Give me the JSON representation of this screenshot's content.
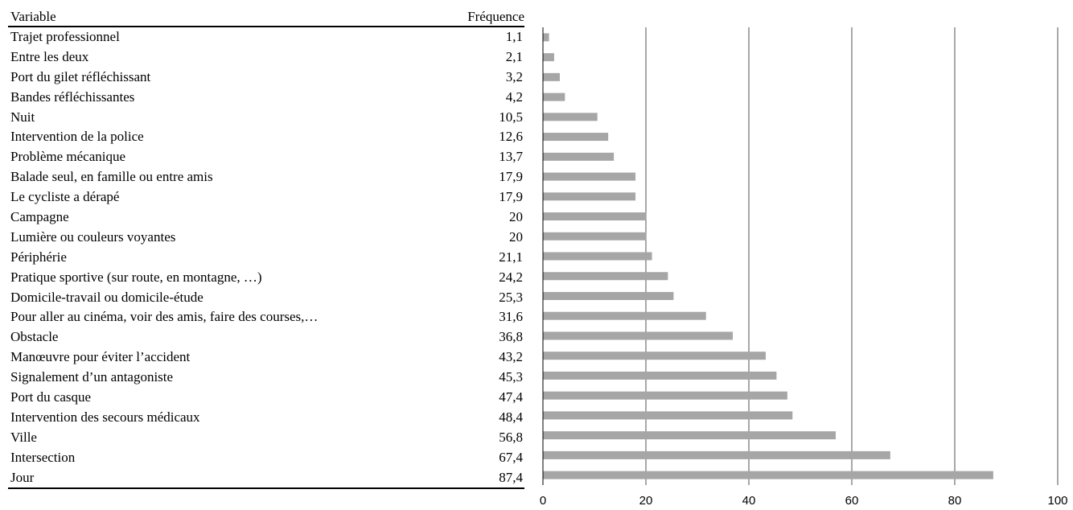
{
  "table": {
    "header_variable": "Variable",
    "header_frequency": "Fréquence",
    "rows": [
      {
        "label": "Trajet professionnel",
        "value": "1,1"
      },
      {
        "label": "Entre les deux",
        "value": "2,1"
      },
      {
        "label": "Port du gilet réfléchissant",
        "value": "3,2"
      },
      {
        "label": "Bandes réfléchissantes",
        "value": "4,2"
      },
      {
        "label": "Nuit",
        "value": "10,5"
      },
      {
        "label": "Intervention de la police",
        "value": "12,6"
      },
      {
        "label": "Problème mécanique",
        "value": "13,7"
      },
      {
        "label": "Balade seul, en famille ou entre amis",
        "value": "17,9"
      },
      {
        "label": "Le cycliste a dérapé",
        "value": "17,9"
      },
      {
        "label": "Campagne",
        "value": "20"
      },
      {
        "label": "Lumière ou couleurs voyantes",
        "value": "20"
      },
      {
        "label": "Périphérie",
        "value": "21,1"
      },
      {
        "label": "Pratique sportive (sur route, en montagne, …)",
        "value": "24,2"
      },
      {
        "label": "Domicile-travail ou domicile-étude",
        "value": "25,3"
      },
      {
        "label": "Pour aller au cinéma, voir des amis, faire des courses,…",
        "value": "31,6"
      },
      {
        "label": "Obstacle",
        "value": "36,8"
      },
      {
        "label": "Manœuvre pour éviter l’accident",
        "value": "43,2"
      },
      {
        "label": "Signalement d’un antagoniste",
        "value": "45,3"
      },
      {
        "label": "Port du casque",
        "value": "47,4"
      },
      {
        "label": "Intervention des secours médicaux",
        "value": "48,4"
      },
      {
        "label": "Ville",
        "value": "56,8"
      },
      {
        "label": "Intersection",
        "value": "67,4"
      },
      {
        "label": "Jour",
        "value": "87,4"
      }
    ]
  },
  "chart_data": {
    "type": "bar",
    "orientation": "horizontal",
    "categories": [
      "Trajet professionnel",
      "Entre les deux",
      "Port du gilet réfléchissant",
      "Bandes réfléchissantes",
      "Nuit",
      "Intervention de la police",
      "Problème mécanique",
      "Balade seul, en famille ou entre amis",
      "Le cycliste a dérapé",
      "Campagne",
      "Lumière ou couleurs voyantes",
      "Périphérie",
      "Pratique sportive (sur route, en montagne, …)",
      "Domicile-travail ou domicile-étude",
      "Pour aller au cinéma, voir des amis, faire des courses,…",
      "Obstacle",
      "Manœuvre pour éviter l’accident",
      "Signalement d’un antagoniste",
      "Port du casque",
      "Intervention des secours médicaux",
      "Ville",
      "Intersection",
      "Jour"
    ],
    "values": [
      1.1,
      2.1,
      3.2,
      4.2,
      10.5,
      12.6,
      13.7,
      17.9,
      17.9,
      20,
      20,
      21.1,
      24.2,
      25.3,
      31.6,
      36.8,
      43.2,
      45.3,
      47.4,
      48.4,
      56.8,
      67.4,
      87.4
    ],
    "xlim": [
      0,
      100
    ],
    "xticks": [
      "0",
      "20",
      "40",
      "60",
      "80",
      "100"
    ],
    "grid": "vertical",
    "bar_color": "#a6a6a6",
    "grid_color": "#8c8c8c"
  }
}
